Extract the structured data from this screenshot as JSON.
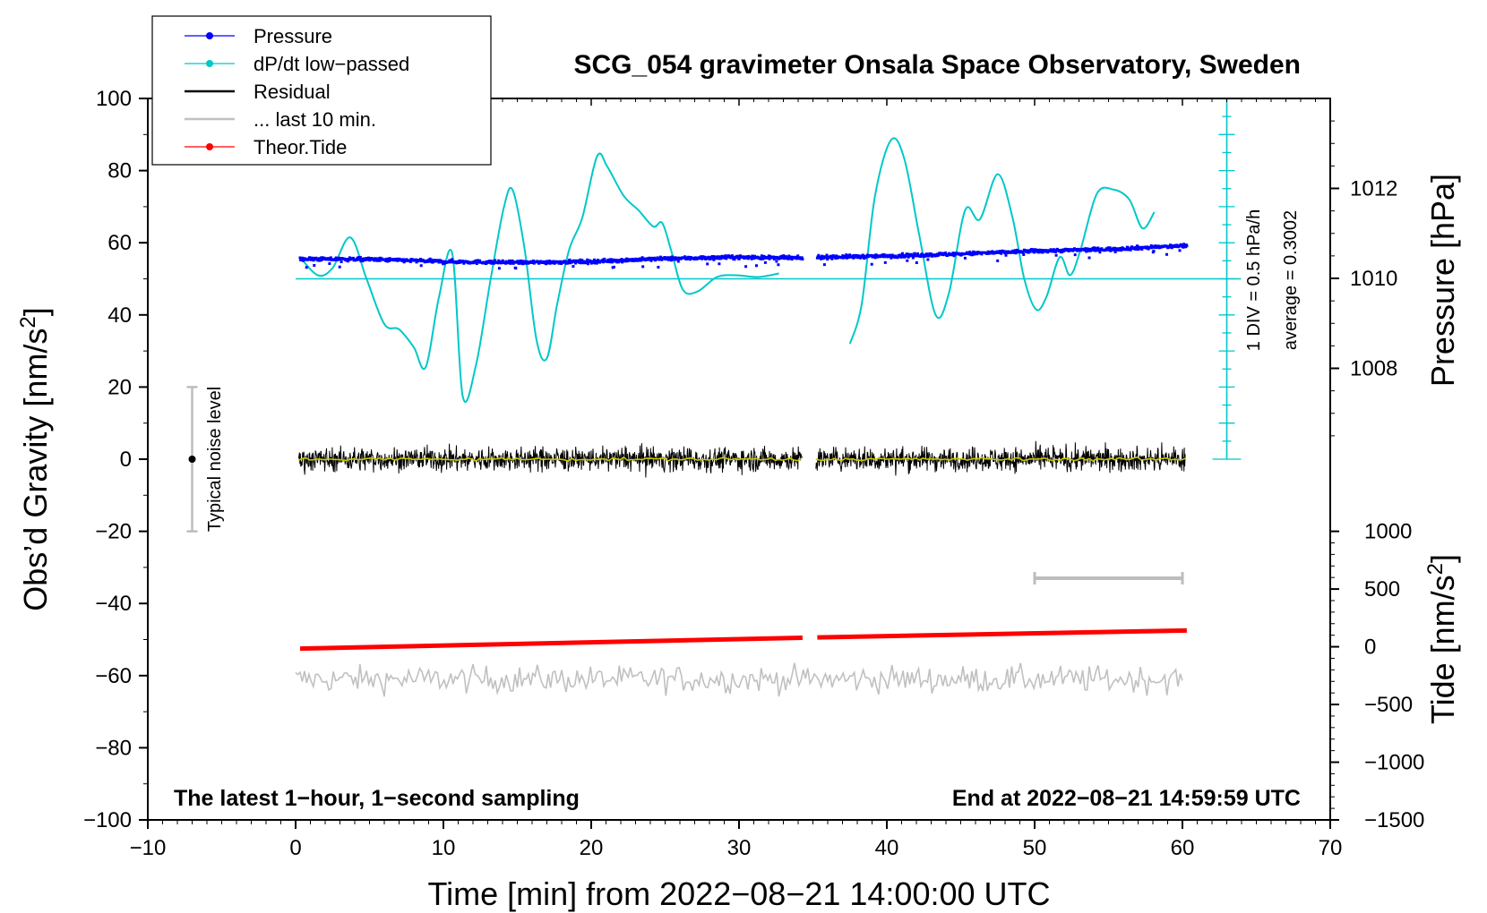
{
  "chart_data": {
    "type": "line",
    "title": "SCG_054 gravimeter Onsala Space Observatory, Sweden",
    "xlabel": "Time [min] from 2022−08−21 14:00:00 UTC",
    "ylabel": "Obs’d Gravity [nm/s",
    "ylabel_sup": "2",
    "ylabel_end": "]",
    "y2label": "Pressure [hPa]",
    "y3label": "Tide [nm/s",
    "y3label_sup": "2",
    "y3label_end": "]",
    "xlim": [
      -10,
      70
    ],
    "ylim": [
      -100,
      100
    ],
    "xticks": [
      -10,
      0,
      10,
      20,
      30,
      40,
      50,
      60,
      70
    ],
    "xtick_labels": [
      "−10",
      "0",
      "10",
      "20",
      "30",
      "40",
      "50",
      "60",
      "70"
    ],
    "yticks": [
      -100,
      -80,
      -60,
      -40,
      -20,
      0,
      20,
      40,
      60,
      80,
      100
    ],
    "ytick_labels": [
      "−100",
      "−80",
      "−60",
      "−40",
      "−20",
      "0",
      "20",
      "40",
      "60",
      "80",
      "100"
    ],
    "pressure_axis": {
      "ticks": [
        1008,
        1010,
        1012
      ],
      "tick_labels": [
        "1008",
        "1010",
        "1012"
      ],
      "range_gravity": [
        0,
        100
      ],
      "range_hpa": [
        1005.98,
        1014.0
      ]
    },
    "tide_axis": {
      "ticks": [
        -1500,
        -1000,
        -500,
        0,
        500,
        1000
      ],
      "tick_labels": [
        "−1500",
        "−1000",
        "−500",
        "0",
        "500",
        "1000"
      ],
      "range_gravity": [
        -100,
        -20
      ],
      "range_nms2": [
        -1500,
        1000
      ]
    },
    "legend": {
      "placement": "top-left",
      "entries": [
        {
          "label": "Pressure",
          "color": "#0000ff",
          "marker": true
        },
        {
          "label": "dP/dt low−passed",
          "color": "#00c8c8",
          "marker": true
        },
        {
          "label": "Residual",
          "color": "#000000",
          "marker": false
        },
        {
          "label": "... last 10 min.",
          "color": "#c0c0c0",
          "marker": false
        },
        {
          "label": "Theor.Tide",
          "color": "#ff0000",
          "marker": true
        }
      ]
    },
    "annotations": {
      "noise_label": "Typical noise level",
      "noise_bar": {
        "x": -7,
        "y": 0,
        "y_low": -20,
        "y_high": 20
      },
      "div_label": "1 DIV = 0.5 hPa/h",
      "average_label": "average = 0.3002",
      "dpdt_scale": {
        "x": 63,
        "y_low": 0,
        "y_high": 100,
        "minor_step": 5,
        "major_step": 10
      },
      "baseline_y": 50,
      "ten_min_bar": {
        "x1": 50,
        "x2": 60,
        "y": -33
      },
      "footer_left": "The latest 1−hour, 1−second sampling",
      "footer_right": "End at 2022−08−21 14:59:59 UTC"
    },
    "series": [
      {
        "name": "Pressure",
        "color": "#0000ff",
        "segments": [
          {
            "x": [
              0.3,
              5,
              10,
              15,
              20,
              25,
              30,
              34.3
            ],
            "y": [
              55.5,
              55.4,
              54.8,
              54.5,
              54.8,
              55.6,
              56.0,
              55.7
            ]
          },
          {
            "x": [
              35.3,
              40,
              45,
              50,
              55,
              60.3
            ],
            "y": [
              56.0,
              56.3,
              56.9,
              57.7,
              58.2,
              59.2
            ]
          }
        ]
      },
      {
        "name": "dP/dt low−passed",
        "color": "#00c8c8",
        "segments": [
          {
            "x": [
              0.3,
              1.5,
              2.5,
              3.7,
              4.8,
              6,
              7,
              8,
              8.8,
              9.7,
              10.6,
              11.3,
              12.2,
              13.2,
              14.1,
              14.7,
              15.5,
              16.3,
              17,
              17.7,
              18.5,
              19.4,
              20.4,
              21.1,
              22.2,
              23.2,
              24.2,
              24.8,
              25.4,
              26.2,
              27.2,
              28.5,
              29.8,
              31.3,
              32.7
            ],
            "y": [
              56,
              51,
              53,
              61.5,
              50,
              37.5,
              36,
              31,
              25.5,
              45,
              57,
              17.5,
              26,
              50,
              70,
              74.5,
              58,
              33,
              28,
              43,
              58,
              67,
              84,
              81,
              73,
              69,
              64.5,
              65.5,
              58,
              47,
              46.5,
              50.5,
              51,
              50.5,
              51.5
            ]
          }
        ]
      },
      {
        "name": "dP/dt low−passed (second hour part)",
        "color": "#00c8c8",
        "segments": [
          {
            "x": [
              37.5,
              38.3,
              39.2,
              40.3,
              41.2,
              42.2,
              43.3,
              44.2,
              45.3,
              46.3,
              47.5,
              48.5,
              49.3,
              50.1,
              50.8,
              51.7,
              52.4,
              53.1,
              54.2,
              55.3,
              56.4,
              57.3,
              58.1
            ],
            "y": [
              32,
              43,
              73,
              88.5,
              83,
              62,
              40,
              46,
              69,
              66.5,
              79,
              67,
              50,
              41.5,
              45,
              56,
              51,
              58,
              73.5,
              74.8,
              72,
              64,
              68.5
            ]
          }
        ]
      },
      {
        "name": "Residual",
        "color": "#000000",
        "segments": [
          {
            "x": [
              0.2,
              34.3
            ],
            "y": [
              0,
              0
            ]
          },
          {
            "x": [
              35.2,
              60.2
            ],
            "y": [
              0,
              0
            ]
          }
        ],
        "noise_amplitude": 3.5
      },
      {
        "name": "... last 10 min.",
        "color": "#c0c0c0",
        "segments": [
          {
            "x": [
              0.0,
              60.0
            ],
            "y": [
              -61,
              -61
            ]
          }
        ],
        "noise_amplitude": 3.5
      },
      {
        "name": "Theor.Tide",
        "color": "#ff0000",
        "segments": [
          {
            "x": [
              0.3,
              34.3
            ],
            "y": [
              -52.5,
              -49.5
            ]
          },
          {
            "x": [
              35.3,
              60.3
            ],
            "y": [
              -49.4,
              -47.5
            ]
          }
        ]
      }
    ]
  }
}
